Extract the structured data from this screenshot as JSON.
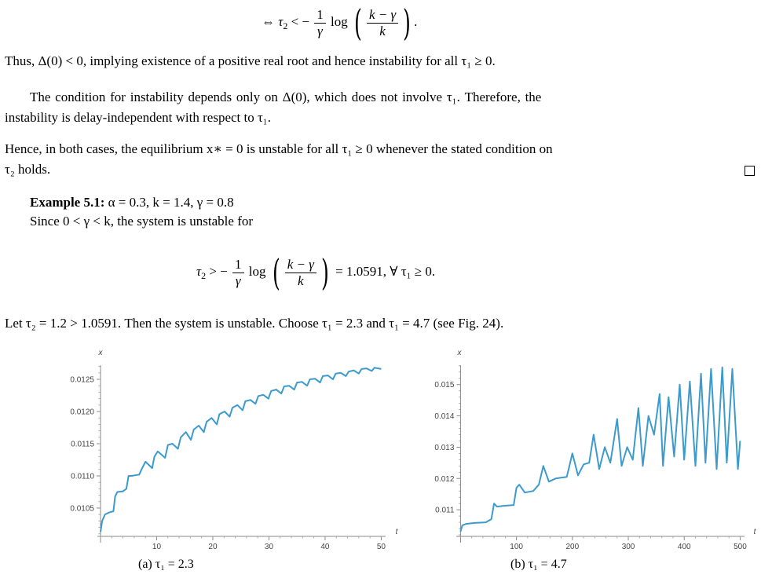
{
  "paragraphs": {
    "eq_top_lhs": "⇔ τ",
    "eq_top_rel": " < −",
    "eq_top_log": "log",
    "p1": "Thus, Δ(0) < 0, implying existence of a positive real root and hence instability for all τ₁ ≥ 0.",
    "p2_line1": "The condition for instability depends only on Δ(0), which does not involve τ₁.  Therefore, the",
    "p2_line2": "instability is delay-independent with respect to τ₁.",
    "p3_line1": "Hence, in both cases, the equilibrium x∗ = 0 is unstable for all τ₁ ≥ 0 whenever the stated condition on",
    "p3_line2": "τ₂ holds.",
    "example_title": "Example 5.1:",
    "example_params": "α = 0.3,  k = 1.4,  γ = 0.8",
    "example_line2": "Since 0 < γ < k, the system is unstable for",
    "eq2_value": " = 1.0591,    ∀ τ₁ ≥ 0.",
    "p4": "Let τ₂ = 1.2 > 1.0591. Then the system is unstable. Choose τ₁ = 2.3 and τ₁ = 4.7 (see Fig. 24)."
  },
  "math_bits": {
    "one": "1",
    "gamma": "γ",
    "k_minus_gamma": "k − γ",
    "k": "k",
    "tau": "τ",
    "two": "2",
    "gt_minus": " > −"
  },
  "captions": {
    "a": "(a) τ₁ = 2.3",
    "b": "(b) τ₁ = 4.7"
  },
  "chart_data": [
    {
      "type": "line",
      "ylabel": "x",
      "xlabel": "t",
      "xlim": [
        0,
        50
      ],
      "ylim": [
        0.1,
        0.01268
      ],
      "xticks": [
        10,
        20,
        30,
        40,
        50
      ],
      "yticks": [
        0.0105,
        0.011,
        0.0115,
        0.012,
        0.0125
      ],
      "ytick_labels": [
        "0.0105",
        "0.0110",
        "0.0115",
        "0.0120",
        "0.0125"
      ],
      "line_color": "#3c9bcc",
      "series": [
        {
          "x": [
            0,
            0.3,
            0.8,
            1.5,
            2.3,
            2.6,
            3.0,
            4.0,
            4.6,
            5.0,
            5.5,
            6.9,
            7.3,
            8.0,
            9.2,
            9.6,
            10.2,
            11.5,
            12.0,
            12.8,
            13.8,
            14.3,
            15.2,
            16.1,
            16.6,
            17.5,
            18.4,
            18.9,
            19.8,
            20.7,
            21.2,
            22.1,
            23.0,
            23.5,
            24.4,
            25.3,
            25.8,
            26.7,
            27.6,
            28.1,
            29.0,
            29.9,
            30.4,
            31.3,
            32.2,
            32.7,
            33.6,
            34.5,
            35.0,
            35.9,
            36.8,
            37.3,
            38.2,
            39.1,
            39.6,
            40.5,
            41.4,
            41.9,
            42.8,
            43.7,
            44.2,
            45.1,
            46.0,
            46.5,
            47.4,
            48.3,
            48.8,
            49.5,
            50.0
          ],
          "y": [
            0.01013,
            0.0103,
            0.0104,
            0.01043,
            0.01045,
            0.01068,
            0.01075,
            0.01076,
            0.0108,
            0.011,
            0.011,
            0.01102,
            0.0111,
            0.01122,
            0.01112,
            0.0113,
            0.01138,
            0.01128,
            0.01148,
            0.0115,
            0.01142,
            0.0116,
            0.01168,
            0.01156,
            0.01172,
            0.01178,
            0.01168,
            0.01184,
            0.0119,
            0.0118,
            0.01196,
            0.012,
            0.01192,
            0.01206,
            0.0121,
            0.01202,
            0.01216,
            0.01218,
            0.01212,
            0.01224,
            0.01226,
            0.0122,
            0.01232,
            0.01234,
            0.01228,
            0.01239,
            0.0124,
            0.01234,
            0.01245,
            0.01246,
            0.0124,
            0.0125,
            0.01251,
            0.01245,
            0.01255,
            0.01256,
            0.0125,
            0.01259,
            0.0126,
            0.01255,
            0.01262,
            0.01264,
            0.01259,
            0.01266,
            0.01267,
            0.01263,
            0.01268,
            0.01267,
            0.01266
          ]
        }
      ]
    },
    {
      "type": "line",
      "ylabel": "x",
      "xlabel": "t",
      "xlim": [
        0,
        500
      ],
      "ylim": [
        0.0101,
        0.0157
      ],
      "xticks": [
        100,
        200,
        300,
        400,
        500
      ],
      "yticks": [
        0.011,
        0.012,
        0.013,
        0.014,
        0.015
      ],
      "ytick_labels": [
        "0.011",
        "0.012",
        "0.013",
        "0.014",
        "0.015"
      ],
      "line_color": "#3c9bcc",
      "series": [
        {
          "x": [
            0,
            3,
            10,
            25,
            45,
            55,
            60,
            65,
            75,
            95,
            100,
            105,
            115,
            130,
            140,
            148,
            158,
            170,
            190,
            200,
            210,
            220,
            230,
            238,
            248,
            258,
            268,
            280,
            288,
            298,
            308,
            318,
            326,
            336,
            346,
            356,
            362,
            372,
            382,
            392,
            400,
            410,
            420,
            430,
            438,
            448,
            458,
            468,
            476,
            486,
            496,
            500
          ],
          "y": [
            0.0103,
            0.0105,
            0.01055,
            0.01058,
            0.0106,
            0.0107,
            0.0112,
            0.0111,
            0.01112,
            0.01115,
            0.0117,
            0.0118,
            0.01155,
            0.0116,
            0.0118,
            0.0124,
            0.0119,
            0.012,
            0.01205,
            0.0128,
            0.0121,
            0.01245,
            0.0125,
            0.0134,
            0.0123,
            0.013,
            0.0125,
            0.0139,
            0.0124,
            0.013,
            0.0126,
            0.01425,
            0.0124,
            0.014,
            0.0134,
            0.0147,
            0.0124,
            0.0146,
            0.0127,
            0.015,
            0.0126,
            0.0151,
            0.0124,
            0.01535,
            0.0125,
            0.0155,
            0.0123,
            0.01555,
            0.0125,
            0.0155,
            0.0123,
            0.0132
          ]
        }
      ]
    }
  ]
}
